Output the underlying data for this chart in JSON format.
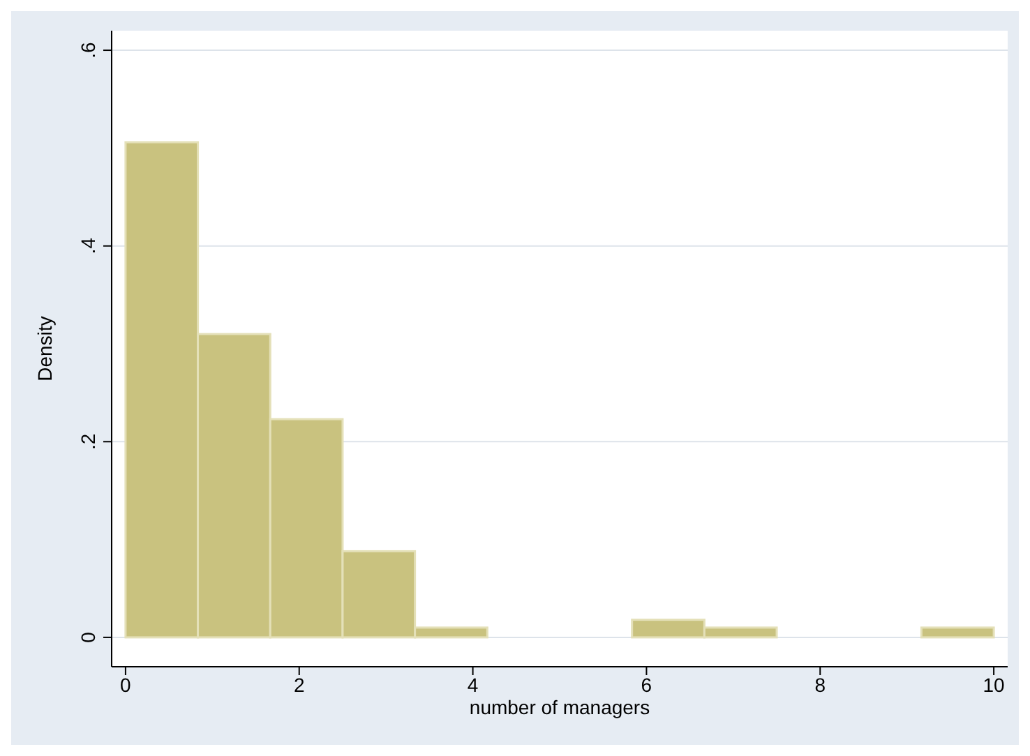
{
  "chart_data": {
    "type": "histogram",
    "xlabel": "number of managers",
    "ylabel": "Density",
    "bins": [
      0,
      0.8333,
      1.6667,
      2.5,
      3.3333,
      4.1667,
      5,
      5.8333,
      6.6667,
      7.5,
      8.3333,
      9.1667,
      10
    ],
    "values": [
      0.506,
      0.31,
      0.223,
      0.088,
      0.01,
      0,
      0,
      0.018,
      0.01,
      0,
      0,
      0.01
    ],
    "color": "#c9c27f",
    "xlim": [
      -0.16,
      10.16
    ],
    "xticks": [
      0,
      2,
      4,
      6,
      8,
      10
    ],
    "ylim": [
      -0.03,
      0.62
    ],
    "yticks": [
      {
        "value": 0,
        "label": "0"
      },
      {
        "value": 0.2,
        "label": ".2"
      },
      {
        "value": 0.4,
        "label": ".4"
      },
      {
        "value": 0.6,
        "label": ".6"
      }
    ],
    "grid": "y"
  }
}
